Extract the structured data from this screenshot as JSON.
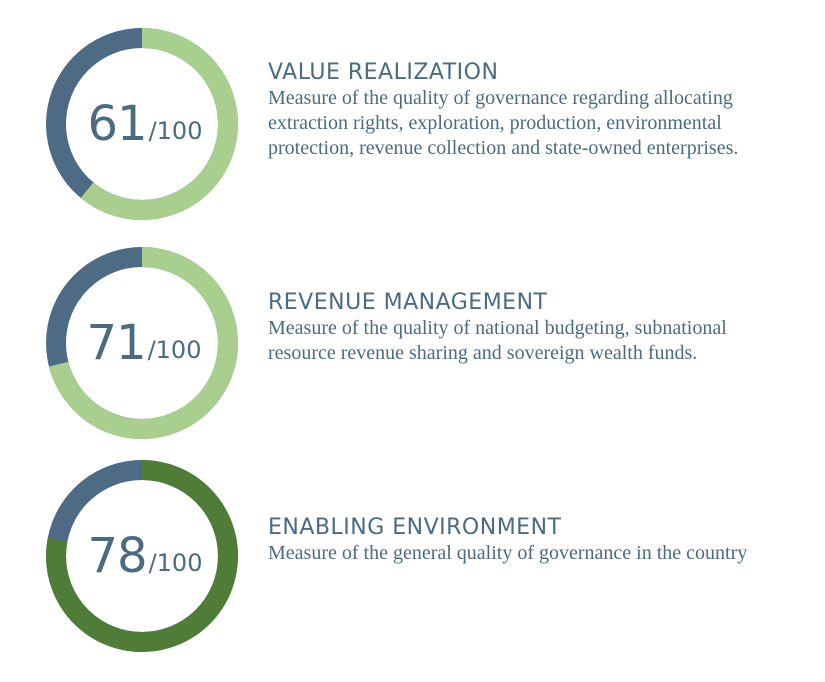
{
  "chart_data": [
    {
      "type": "donut",
      "value": 61,
      "max": 100,
      "value_label": "61",
      "max_label": "/100",
      "title": "VALUE REALIZATION",
      "description": "Measure of the quality of governance regarding allocating extraction rights, exploration, production, environmental protection, revenue collection and state-owned enterprises.",
      "colors": {
        "filled": "#a9cf8f",
        "remainder": "#4e6b85"
      }
    },
    {
      "type": "donut",
      "value": 71,
      "max": 100,
      "value_label": "71",
      "max_label": "/100",
      "title": "REVENUE MANAGEMENT",
      "description": "Measure of the quality of national budgeting, subnational resource revenue sharing and sovereign wealth funds.",
      "colors": {
        "filled": "#a9cf8f",
        "remainder": "#4e6b85"
      }
    },
    {
      "type": "donut",
      "value": 78,
      "max": 100,
      "value_label": "78",
      "max_label": "/100",
      "title": "ENABLING ENVIRONMENT",
      "description": "Measure of the general quality of governance in the country",
      "colors": {
        "filled": "#4f7d37",
        "remainder": "#4e6b85"
      }
    }
  ],
  "text_color": "#4b6b82"
}
